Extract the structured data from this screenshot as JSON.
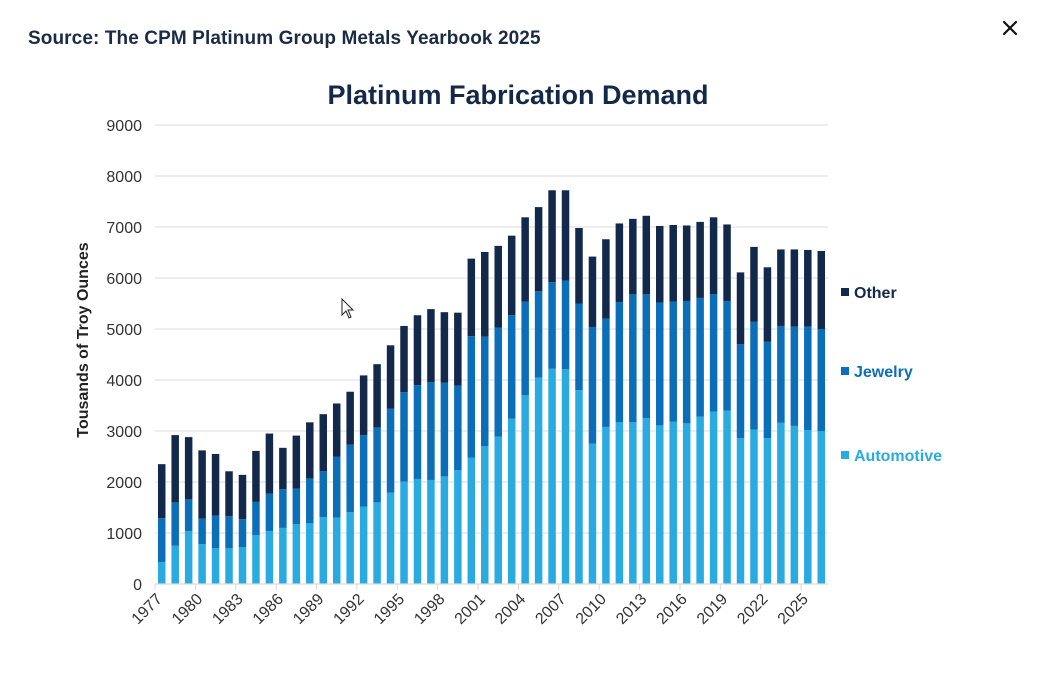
{
  "header": {
    "source_text": "Source: The CPM Platinum Group Metals Yearbook 2025",
    "close_icon": "close-icon"
  },
  "colors": {
    "automotive": "#29abe2",
    "jewelry": "#0a6fb8",
    "other": "#13294b",
    "grid": "#e3e3e3",
    "text": "#333333",
    "title": "#14284a"
  },
  "chart_data": {
    "type": "bar",
    "stacked": true,
    "title": "Platinum Fabrication Demand",
    "xlabel": "",
    "ylabel": "Tousands of Troy Ounces",
    "ylim": [
      0,
      9000
    ],
    "yticks": [
      0,
      1000,
      2000,
      3000,
      4000,
      5000,
      6000,
      7000,
      8000,
      9000
    ],
    "grid": true,
    "legend_position": "right",
    "x": [
      1977,
      1978,
      1979,
      1980,
      1981,
      1982,
      1983,
      1984,
      1985,
      1986,
      1987,
      1988,
      1989,
      1990,
      1991,
      1992,
      1993,
      1994,
      1995,
      1996,
      1997,
      1998,
      1999,
      2000,
      2001,
      2002,
      2003,
      2004,
      2005,
      2006,
      2007,
      2008,
      2009,
      2010,
      2011,
      2012,
      2013,
      2014,
      2015,
      2016,
      2017,
      2018,
      2019,
      2020,
      2021,
      2022,
      2023,
      2024,
      2025,
      2026
    ],
    "xtick_labels": [
      "1977",
      "1980",
      "1983",
      "1986",
      "1989",
      "1992",
      "1995",
      "1998",
      "2001",
      "2004",
      "2007",
      "2010",
      "2013",
      "2016",
      "2019",
      "2022",
      "2025"
    ],
    "series": [
      {
        "name": "Automotive",
        "color": "#29abe2",
        "values": [
          430,
          750,
          1040,
          780,
          700,
          700,
          720,
          960,
          1040,
          1100,
          1170,
          1190,
          1310,
          1300,
          1410,
          1520,
          1600,
          1790,
          2010,
          2060,
          2040,
          2110,
          2230,
          2480,
          2700,
          2890,
          3240,
          3700,
          4050,
          4220,
          4210,
          3800,
          2750,
          3080,
          3170,
          3170,
          3250,
          3110,
          3180,
          3150,
          3280,
          3380,
          3400,
          2860,
          3030,
          2860,
          3160,
          3100,
          3020,
          3000
        ]
      },
      {
        "name": "Jewelry",
        "color": "#0a6fb8",
        "values": [
          860,
          850,
          620,
          500,
          640,
          630,
          550,
          650,
          730,
          760,
          700,
          880,
          900,
          1200,
          1320,
          1400,
          1470,
          1650,
          1750,
          1840,
          1920,
          1840,
          1660,
          2380,
          2150,
          2140,
          2030,
          1840,
          1690,
          1700,
          1740,
          1700,
          2290,
          2120,
          2360,
          2510,
          2430,
          2410,
          2360,
          2400,
          2330,
          2300,
          2150,
          1840,
          2110,
          1890,
          1900,
          1950,
          2030,
          2000
        ]
      },
      {
        "name": "Other",
        "color": "#13294b",
        "values": [
          1060,
          1320,
          1220,
          1340,
          1210,
          880,
          870,
          1000,
          1180,
          810,
          1040,
          1100,
          1120,
          1040,
          1040,
          1170,
          1240,
          1240,
          1300,
          1370,
          1430,
          1380,
          1430,
          1520,
          1660,
          1600,
          1560,
          1650,
          1650,
          1800,
          1770,
          1480,
          1380,
          1560,
          1540,
          1480,
          1540,
          1500,
          1500,
          1480,
          1490,
          1510,
          1500,
          1410,
          1470,
          1460,
          1500,
          1510,
          1500,
          1530
        ]
      }
    ],
    "legend_order": [
      "Other",
      "Jewelry",
      "Automotive"
    ]
  }
}
